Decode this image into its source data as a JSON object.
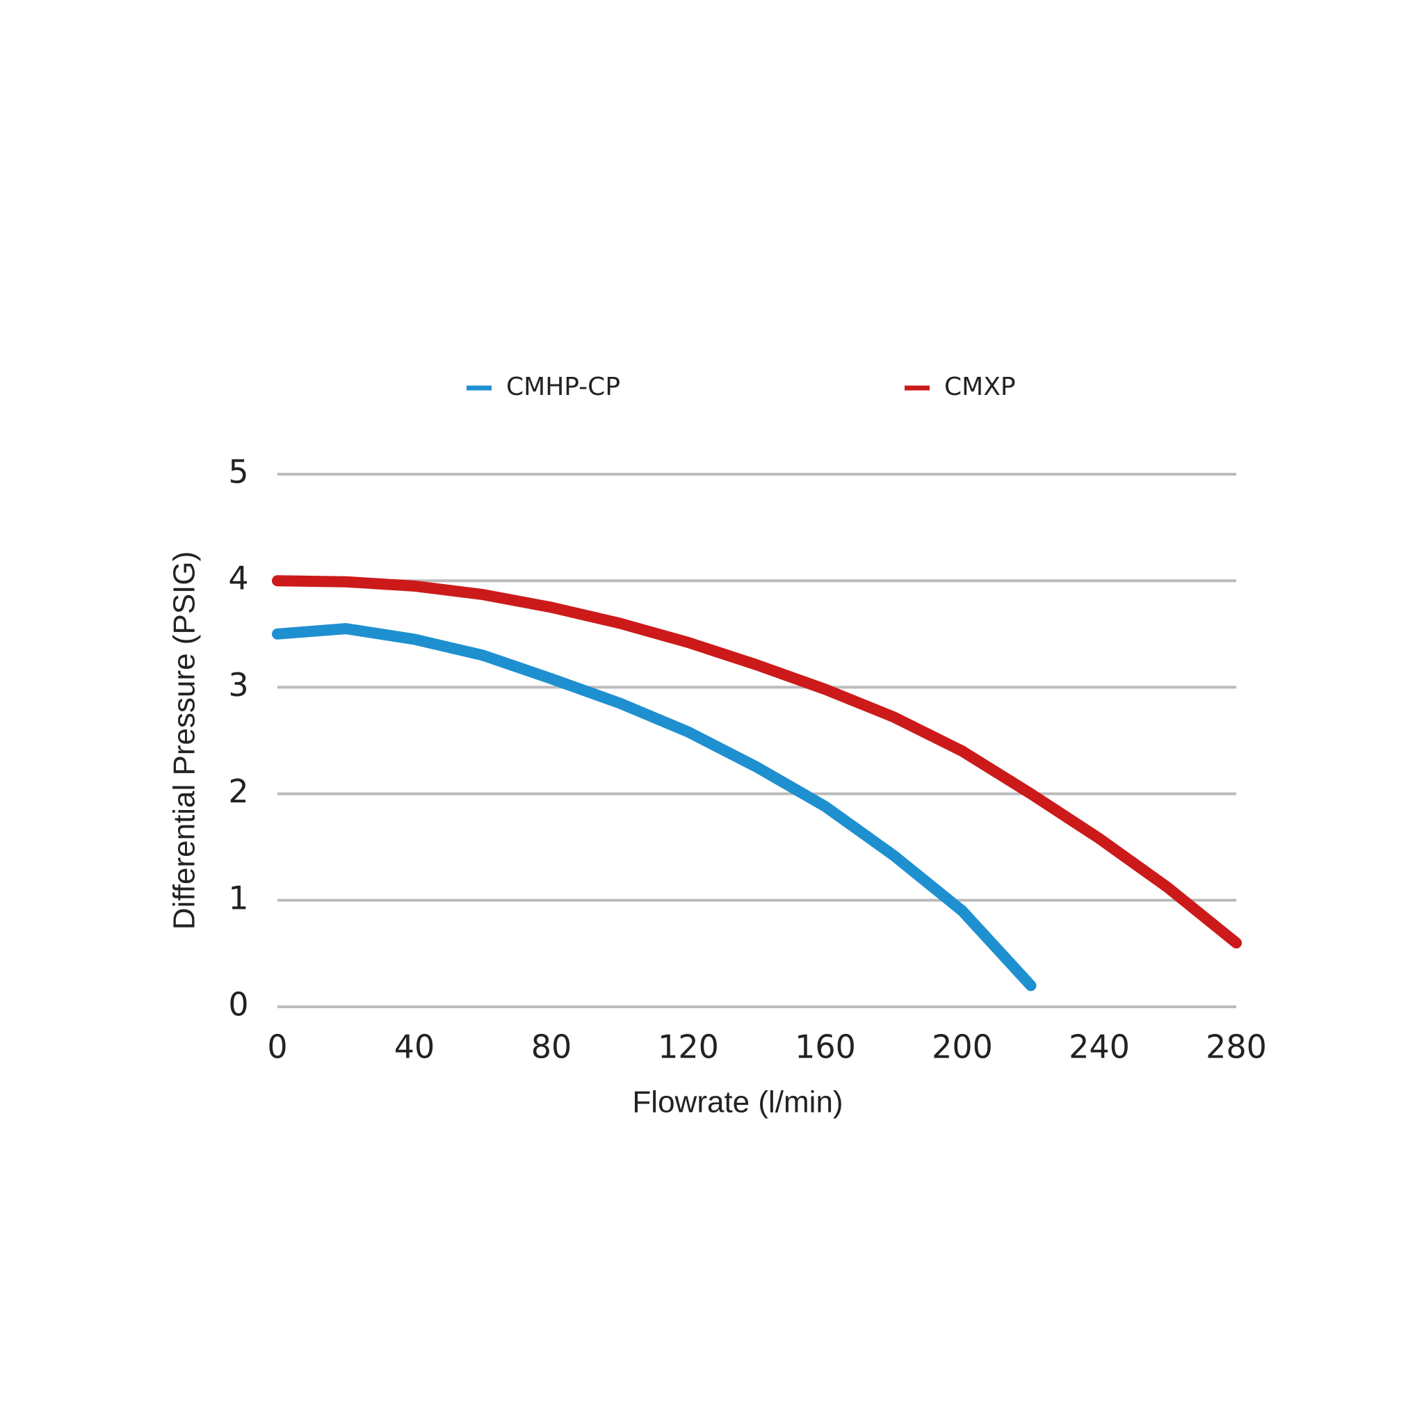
{
  "chart_data": {
    "type": "line",
    "x_label": "Flowrate (l/min)",
    "y_label": "Differential Pressure (PSIG)",
    "series": [
      {
        "name": "CMHP-CP",
        "color": "#1e90d0",
        "x": [
          0,
          20,
          40,
          60,
          80,
          100,
          120,
          140,
          160,
          180,
          200,
          220
        ],
        "values": [
          3.5,
          3.55,
          3.45,
          3.3,
          3.08,
          2.85,
          2.58,
          2.25,
          1.88,
          1.42,
          0.9,
          0.2
        ]
      },
      {
        "name": "CMXP",
        "color": "#cc1a1a",
        "x": [
          0,
          20,
          40,
          60,
          80,
          100,
          120,
          140,
          160,
          180,
          200,
          220,
          240,
          260,
          280
        ],
        "values": [
          4.0,
          3.99,
          3.95,
          3.87,
          3.75,
          3.6,
          3.42,
          3.21,
          2.98,
          2.72,
          2.4,
          2.0,
          1.58,
          1.12,
          0.6
        ]
      }
    ],
    "xlim": [
      0,
      280
    ],
    "xticks": [
      0,
      40,
      80,
      120,
      160,
      200,
      240,
      280
    ],
    "ylim": [
      0,
      5
    ],
    "yticks": [
      0,
      1,
      2,
      3,
      4,
      5
    ],
    "grid": true,
    "legend": "top"
  }
}
